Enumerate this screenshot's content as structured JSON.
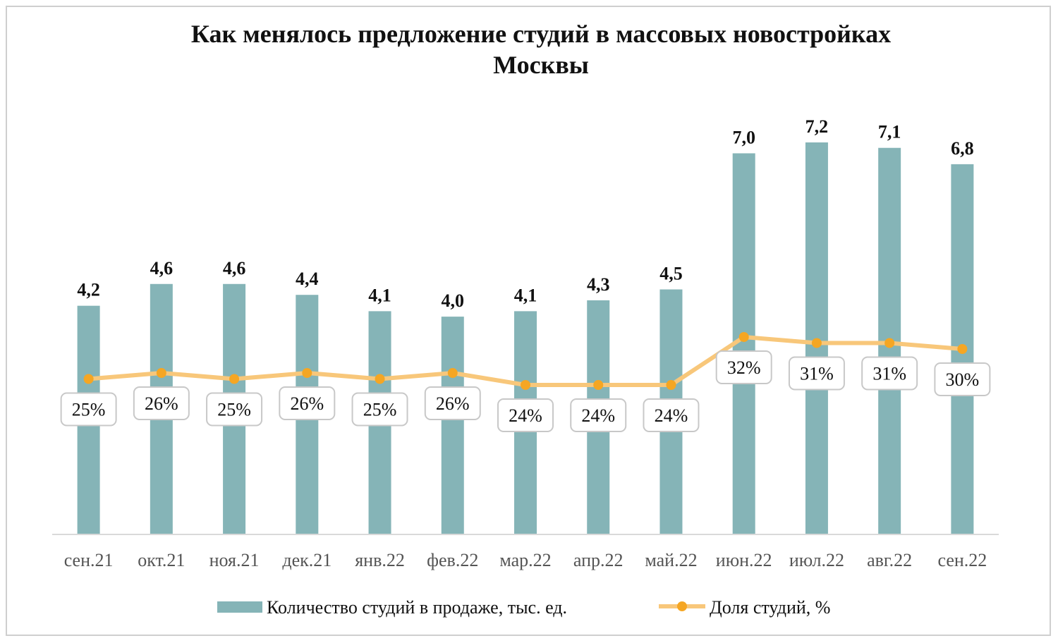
{
  "chart_data": {
    "type": "bar",
    "title_line1": "Как менялось предложение студий в массовых новостройках",
    "title_line2": "Москвы",
    "categories": [
      "сен.21",
      "окт.21",
      "ноя.21",
      "дек.21",
      "янв.22",
      "фев.22",
      "мар.22",
      "апр.22",
      "май.22",
      "июн.22",
      "июл.22",
      "авг.22",
      "сен.22"
    ],
    "series": [
      {
        "name": "Количество студий в продаже, тыс. ед.",
        "type": "bar",
        "color": "#85b4b7",
        "values": [
          4.2,
          4.6,
          4.6,
          4.4,
          4.1,
          4.0,
          4.1,
          4.3,
          4.5,
          7.0,
          7.2,
          7.1,
          6.8
        ],
        "labels": [
          "4,2",
          "4,6",
          "4,6",
          "4,4",
          "4,1",
          "4,0",
          "4,1",
          "4,3",
          "4,5",
          "7,0",
          "7,2",
          "7,1",
          "6,8"
        ]
      },
      {
        "name": "Доля студий, %",
        "type": "line",
        "color": "#f8c77a",
        "marker_color": "#f5a623",
        "values": [
          25,
          26,
          25,
          26,
          25,
          26,
          24,
          24,
          24,
          32,
          31,
          31,
          30
        ],
        "labels": [
          "25%",
          "26%",
          "25%",
          "26%",
          "25%",
          "26%",
          "24%",
          "24%",
          "24%",
          "32%",
          "31%",
          "31%",
          "30%"
        ]
      }
    ],
    "ylim_bars": [
      0,
      7.2
    ],
    "legend_position": "bottom",
    "grid": false
  }
}
